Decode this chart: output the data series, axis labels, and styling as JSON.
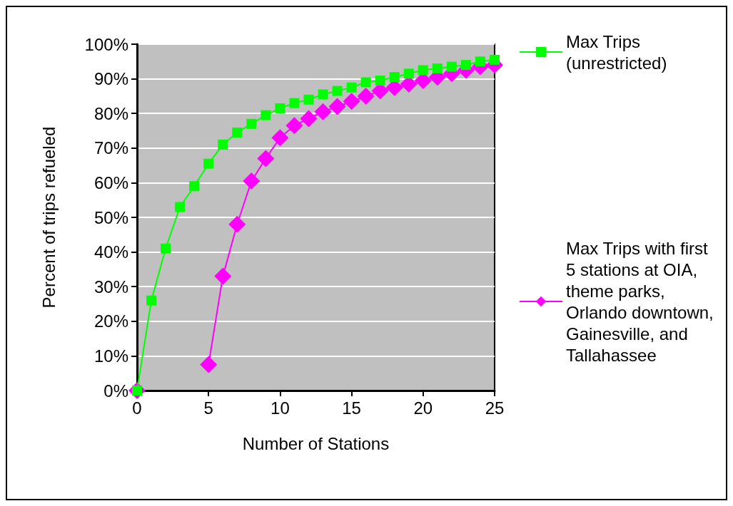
{
  "chart_data": {
    "type": "line",
    "xlabel": "Number of Stations",
    "ylabel": "Percent of trips refueled",
    "x": [
      0,
      1,
      2,
      3,
      4,
      5,
      6,
      7,
      8,
      9,
      10,
      11,
      12,
      13,
      14,
      15,
      16,
      17,
      18,
      19,
      20,
      21,
      22,
      23,
      24,
      25
    ],
    "series": [
      {
        "name": "Max Trips (unrestricted)",
        "color": "#00ff00",
        "marker": "square",
        "values": [
          0,
          26,
          41,
          53,
          59,
          65.5,
          71,
          74.5,
          77,
          79.5,
          81.5,
          83,
          84,
          85.5,
          86.5,
          87.5,
          89,
          89.5,
          90.5,
          91.5,
          92.5,
          93,
          93.5,
          94,
          95,
          95.5
        ]
      },
      {
        "name": "Max Trips with first 5 stations at OIA, theme parks, Orlando downtown, Gainesville, and Tallahassee",
        "color": "#ff00ff",
        "marker": "diamond",
        "values": [
          0,
          null,
          null,
          null,
          null,
          7.5,
          33,
          48,
          60.5,
          67,
          73,
          76.5,
          78.5,
          80.5,
          82,
          83.5,
          85,
          86.5,
          87.5,
          88.5,
          89.5,
          90.5,
          91.5,
          92.5,
          93.5,
          94
        ]
      }
    ],
    "xlim": [
      0,
      25
    ],
    "xticks": [
      0,
      5,
      10,
      15,
      20,
      25
    ],
    "ylim": [
      0,
      100
    ],
    "yticks": [
      {
        "value": 0,
        "label": "0%"
      },
      {
        "value": 10,
        "label": "10%"
      },
      {
        "value": 20,
        "label": "20%"
      },
      {
        "value": 30,
        "label": "30%"
      },
      {
        "value": 40,
        "label": "40%"
      },
      {
        "value": 50,
        "label": "50%"
      },
      {
        "value": 60,
        "label": "60%"
      },
      {
        "value": 70,
        "label": "70%"
      },
      {
        "value": 80,
        "label": "80%"
      },
      {
        "value": 90,
        "label": "90%"
      },
      {
        "value": 100,
        "label": "100%"
      }
    ],
    "grid": "y",
    "legend": "right",
    "line_style": "solid"
  }
}
